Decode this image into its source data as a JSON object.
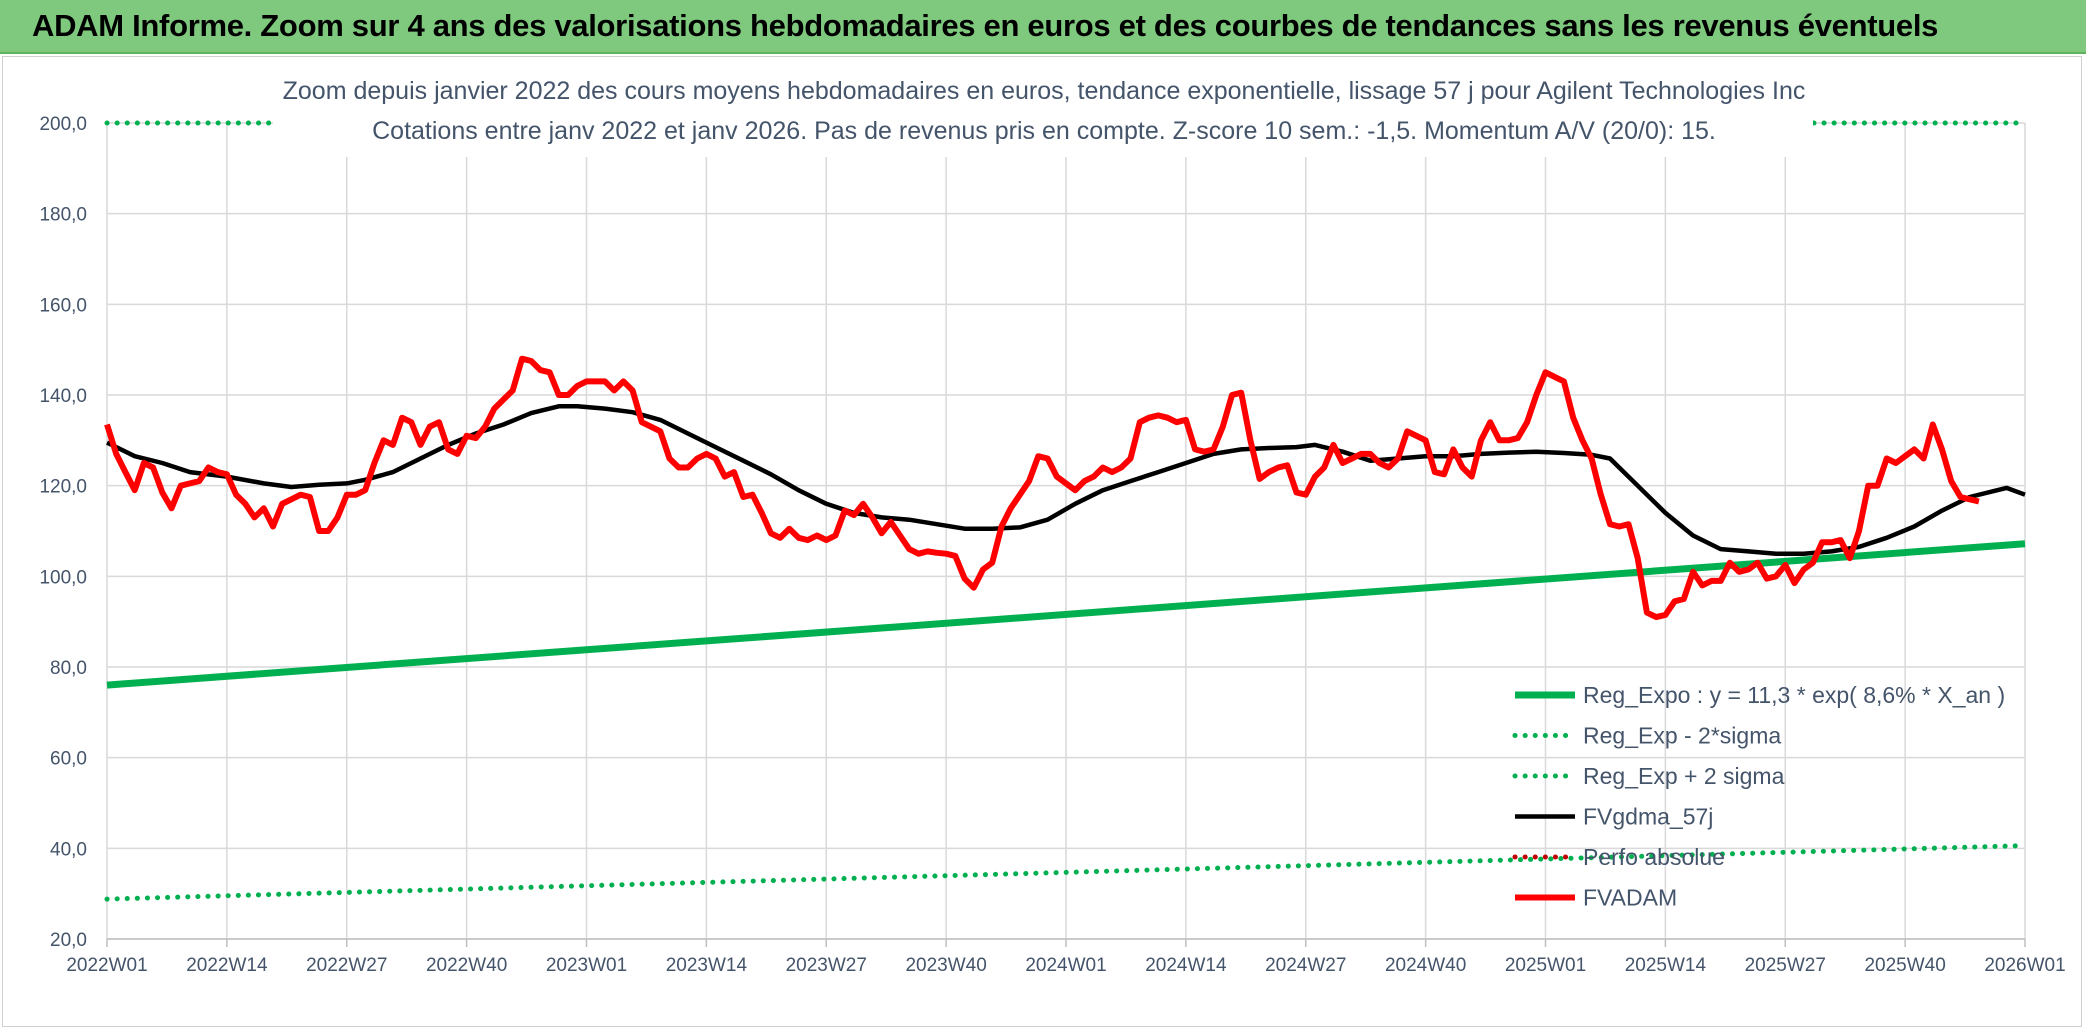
{
  "header": {
    "title": "ADAM Informe. Zoom sur 4 ans des valorisations hebdomadaires en euros et des courbes de tendances sans les revenus éventuels"
  },
  "chart_data": {
    "type": "line",
    "title": "Zoom depuis janvier 2022 des cours moyens hebdomadaires en euros, tendance exponentielle, lissage 57 j pour Agilent Technologies Inc",
    "subtitle": "Cotations entre janv 2022 et janv 2026. Pas de revenus pris en compte. Z-score 10 sem.: -1,5. Momentum A/V (20/0): 15.",
    "xlabel": "",
    "ylabel": "",
    "ylim": [
      20,
      200
    ],
    "yticks": [
      "20,0",
      "40,0",
      "60,0",
      "80,0",
      "100,0",
      "120,0",
      "140,0",
      "160,0",
      "180,0",
      "200,0"
    ],
    "xticks": [
      "2022W01",
      "2022W14",
      "2022W27",
      "2022W40",
      "2023W01",
      "2023W14",
      "2023W27",
      "2023W40",
      "2024W01",
      "2024W14",
      "2024W27",
      "2024W40",
      "2025W01",
      "2025W14",
      "2025W27",
      "2025W40",
      "2026W01"
    ],
    "x_range_weeks": [
      0,
      208
    ],
    "grid": true,
    "legend_position": "bottom-right",
    "series": [
      {
        "name": "Reg_Expo : y = 11,3 * exp( 8,6% *  X_an )",
        "color": "#00b050",
        "style": "solid",
        "points": [
          [
            0,
            76.0
          ],
          [
            208,
            107.2
          ]
        ]
      },
      {
        "name": "Reg_Exp - 2*sigma",
        "color": "#00b050",
        "style": "dotted",
        "points": [
          [
            0,
            28.8
          ],
          [
            208,
            40.6
          ]
        ]
      },
      {
        "name": "Reg_Exp + 2 sigma",
        "color": "#00b050",
        "style": "dotted",
        "clip_top": true,
        "points": [
          [
            0,
            200.0
          ],
          [
            208,
            200.0
          ]
        ]
      },
      {
        "name": "FVgdma_57j",
        "color": "#000000",
        "style": "solid",
        "points": [
          [
            0,
            129.5
          ],
          [
            3,
            126.5
          ],
          [
            6,
            125.0
          ],
          [
            9,
            123.0
          ],
          [
            13,
            122.0
          ],
          [
            17,
            120.5
          ],
          [
            20,
            119.7
          ],
          [
            23,
            120.2
          ],
          [
            26,
            120.5
          ],
          [
            28,
            121.3
          ],
          [
            31,
            123.0
          ],
          [
            34,
            126.0
          ],
          [
            37,
            129.0
          ],
          [
            40,
            131.5
          ],
          [
            43,
            133.5
          ],
          [
            46,
            136.0
          ],
          [
            49,
            137.5
          ],
          [
            51,
            137.5
          ],
          [
            54,
            137.0
          ],
          [
            57,
            136.2
          ],
          [
            60,
            134.5
          ],
          [
            63,
            131.5
          ],
          [
            66,
            128.5
          ],
          [
            69,
            125.5
          ],
          [
            72,
            122.5
          ],
          [
            75,
            119.0
          ],
          [
            78,
            116.0
          ],
          [
            81,
            114.0
          ],
          [
            84,
            113.0
          ],
          [
            87,
            112.5
          ],
          [
            90,
            111.5
          ],
          [
            93,
            110.5
          ],
          [
            96,
            110.5
          ],
          [
            99,
            110.8
          ],
          [
            102,
            112.5
          ],
          [
            105,
            116.0
          ],
          [
            108,
            119.0
          ],
          [
            111,
            121.0
          ],
          [
            114,
            123.0
          ],
          [
            117,
            125.0
          ],
          [
            120,
            127.0
          ],
          [
            123,
            128.0
          ],
          [
            126,
            128.3
          ],
          [
            129,
            128.5
          ],
          [
            131,
            129.0
          ],
          [
            134,
            127.5
          ],
          [
            137,
            125.5
          ],
          [
            140,
            126.0
          ],
          [
            143,
            126.5
          ],
          [
            146,
            126.5
          ],
          [
            149,
            127.0
          ],
          [
            152,
            127.3
          ],
          [
            155,
            127.5
          ],
          [
            158,
            127.2
          ],
          [
            161,
            126.8
          ],
          [
            163,
            126.0
          ],
          [
            166,
            120.0
          ],
          [
            169,
            114.0
          ],
          [
            172,
            109.0
          ],
          [
            175,
            106.0
          ],
          [
            178,
            105.5
          ],
          [
            181,
            105.0
          ],
          [
            184,
            105.0
          ],
          [
            187,
            105.5
          ],
          [
            190,
            106.5
          ],
          [
            193,
            108.5
          ],
          [
            196,
            111.0
          ],
          [
            199,
            114.5
          ],
          [
            202,
            117.5
          ],
          [
            205,
            119.0
          ],
          [
            206,
            119.5
          ],
          [
            208,
            118.0
          ]
        ]
      },
      {
        "name": "Perfo absolue",
        "color": "#c00000",
        "style": "dotted",
        "points": []
      },
      {
        "name": "FVADAM",
        "color": "#ff0000",
        "style": "solid",
        "points": [
          [
            0,
            133.5
          ],
          [
            1,
            127.0
          ],
          [
            2,
            123.0
          ],
          [
            3,
            119.0
          ],
          [
            4,
            125.0
          ],
          [
            5,
            124.0
          ],
          [
            6,
            118.5
          ],
          [
            7,
            115.0
          ],
          [
            8,
            120.0
          ],
          [
            9,
            120.5
          ],
          [
            10,
            121.0
          ],
          [
            11,
            124.0
          ],
          [
            12,
            123.0
          ],
          [
            13,
            122.5
          ],
          [
            14,
            118.0
          ],
          [
            15,
            116.0
          ],
          [
            16,
            113.0
          ],
          [
            17,
            115.0
          ],
          [
            18,
            111.0
          ],
          [
            19,
            116.0
          ],
          [
            20,
            117.0
          ],
          [
            21,
            118.0
          ],
          [
            22,
            117.5
          ],
          [
            23,
            110.0
          ],
          [
            24,
            110.0
          ],
          [
            25,
            113.0
          ],
          [
            26,
            118.0
          ],
          [
            27,
            118.0
          ],
          [
            28,
            119.0
          ],
          [
            29,
            125.0
          ],
          [
            30,
            130.0
          ],
          [
            31,
            129.0
          ],
          [
            32,
            135.0
          ],
          [
            33,
            134.0
          ],
          [
            34,
            129.0
          ],
          [
            35,
            133.0
          ],
          [
            36,
            134.0
          ],
          [
            37,
            128.0
          ],
          [
            38,
            127.0
          ],
          [
            39,
            131.0
          ],
          [
            40,
            130.5
          ],
          [
            41,
            133.0
          ],
          [
            42,
            137.0
          ],
          [
            43,
            139.0
          ],
          [
            44,
            141.0
          ],
          [
            45,
            148.0
          ],
          [
            46,
            147.5
          ],
          [
            47,
            145.5
          ],
          [
            48,
            145.0
          ],
          [
            49,
            140.0
          ],
          [
            50,
            140.0
          ],
          [
            51,
            142.0
          ],
          [
            52,
            143.0
          ],
          [
            53,
            143.0
          ],
          [
            54,
            143.0
          ],
          [
            55,
            141.0
          ],
          [
            56,
            143.0
          ],
          [
            57,
            141.0
          ],
          [
            58,
            134.0
          ],
          [
            59,
            133.0
          ],
          [
            60,
            132.0
          ],
          [
            61,
            126.0
          ],
          [
            62,
            124.0
          ],
          [
            63,
            124.0
          ],
          [
            64,
            126.0
          ],
          [
            65,
            127.0
          ],
          [
            66,
            126.0
          ],
          [
            67,
            122.0
          ],
          [
            68,
            123.0
          ],
          [
            69,
            117.5
          ],
          [
            70,
            118.0
          ],
          [
            71,
            114.0
          ],
          [
            72,
            109.5
          ],
          [
            73,
            108.5
          ],
          [
            74,
            110.5
          ],
          [
            75,
            108.5
          ],
          [
            76,
            108.0
          ],
          [
            77,
            109.0
          ],
          [
            78,
            108.0
          ],
          [
            79,
            109.0
          ],
          [
            80,
            114.5
          ],
          [
            81,
            113.5
          ],
          [
            82,
            116.0
          ],
          [
            83,
            113.0
          ],
          [
            84,
            109.5
          ],
          [
            85,
            112.0
          ],
          [
            86,
            109.0
          ],
          [
            87,
            106.0
          ],
          [
            88,
            105.0
          ],
          [
            89,
            105.5
          ],
          [
            90,
            105.2
          ],
          [
            91,
            105.0
          ],
          [
            92,
            104.5
          ],
          [
            93,
            99.5
          ],
          [
            94,
            97.5
          ],
          [
            95,
            101.5
          ],
          [
            96,
            103.0
          ],
          [
            97,
            111.0
          ],
          [
            98,
            115.0
          ],
          [
            99,
            118.0
          ],
          [
            100,
            121.0
          ],
          [
            101,
            126.5
          ],
          [
            102,
            126.0
          ],
          [
            103,
            122.0
          ],
          [
            104,
            120.5
          ],
          [
            105,
            119.0
          ],
          [
            106,
            121.0
          ],
          [
            107,
            122.0
          ],
          [
            108,
            124.0
          ],
          [
            109,
            123.0
          ],
          [
            110,
            124.0
          ],
          [
            111,
            126.0
          ],
          [
            112,
            134.0
          ],
          [
            113,
            135.0
          ],
          [
            114,
            135.5
          ],
          [
            115,
            135.0
          ],
          [
            116,
            134.0
          ],
          [
            117,
            134.5
          ],
          [
            118,
            128.0
          ],
          [
            119,
            127.5
          ],
          [
            120,
            128.0
          ],
          [
            121,
            133.0
          ],
          [
            122,
            140.0
          ],
          [
            123,
            140.5
          ],
          [
            124,
            130.0
          ],
          [
            125,
            121.5
          ],
          [
            126,
            123.0
          ],
          [
            127,
            124.0
          ],
          [
            128,
            124.5
          ],
          [
            129,
            118.5
          ],
          [
            130,
            118.0
          ],
          [
            131,
            122.0
          ],
          [
            132,
            124.0
          ],
          [
            133,
            129.0
          ],
          [
            134,
            125.0
          ],
          [
            135,
            126.0
          ],
          [
            136,
            127.0
          ],
          [
            137,
            127.0
          ],
          [
            138,
            125.0
          ],
          [
            139,
            124.0
          ],
          [
            140,
            126.0
          ],
          [
            141,
            132.0
          ],
          [
            142,
            131.0
          ],
          [
            143,
            130.0
          ],
          [
            144,
            123.0
          ],
          [
            145,
            122.5
          ],
          [
            146,
            128.0
          ],
          [
            147,
            124.0
          ],
          [
            148,
            122.0
          ],
          [
            149,
            130.0
          ],
          [
            150,
            134.0
          ],
          [
            151,
            130.0
          ],
          [
            152,
            130.0
          ],
          [
            153,
            130.5
          ],
          [
            154,
            134.0
          ],
          [
            155,
            140.0
          ],
          [
            156,
            145.0
          ],
          [
            157,
            144.0
          ],
          [
            158,
            143.0
          ],
          [
            159,
            135.0
          ],
          [
            160,
            130.0
          ],
          [
            161,
            126.0
          ],
          [
            162,
            118.0
          ],
          [
            163,
            111.5
          ],
          [
            164,
            111.0
          ],
          [
            165,
            111.5
          ],
          [
            166,
            104.0
          ],
          [
            167,
            92.0
          ],
          [
            168,
            91.0
          ],
          [
            169,
            91.5
          ],
          [
            170,
            94.5
          ],
          [
            171,
            95.0
          ],
          [
            172,
            101.0
          ],
          [
            173,
            98.0
          ],
          [
            174,
            99.0
          ],
          [
            175,
            99.0
          ],
          [
            176,
            103.0
          ],
          [
            177,
            101.0
          ],
          [
            178,
            101.5
          ],
          [
            179,
            103.0
          ],
          [
            180,
            99.5
          ],
          [
            181,
            100.0
          ],
          [
            182,
            102.5
          ],
          [
            183,
            98.5
          ],
          [
            184,
            101.5
          ],
          [
            185,
            103.0
          ],
          [
            186,
            107.5
          ],
          [
            187,
            107.5
          ],
          [
            188,
            108.0
          ],
          [
            189,
            104.0
          ],
          [
            190,
            110.0
          ],
          [
            191,
            120.0
          ],
          [
            192,
            120.0
          ],
          [
            193,
            126.0
          ],
          [
            194,
            125.0
          ],
          [
            195,
            126.5
          ],
          [
            196,
            128.0
          ],
          [
            197,
            126.0
          ],
          [
            198,
            133.5
          ],
          [
            199,
            128.0
          ],
          [
            200,
            121.0
          ],
          [
            201,
            117.5
          ],
          [
            202,
            117.0
          ],
          [
            203,
            116.5
          ]
        ]
      }
    ]
  }
}
